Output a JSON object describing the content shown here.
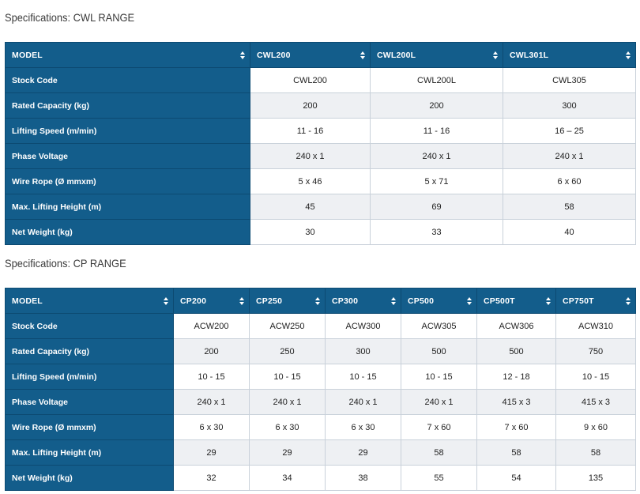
{
  "cwl": {
    "title": "Specifications: CWL RANGE",
    "headers": [
      "MODEL",
      "CWL200",
      "CWL200L",
      "CWL301L"
    ],
    "rows": [
      {
        "label": "Stock Code",
        "values": [
          "CWL200",
          "CWL200L",
          "CWL305"
        ]
      },
      {
        "label": "Rated Capacity (kg)",
        "values": [
          "200",
          "200",
          "300"
        ]
      },
      {
        "label": "Lifting Speed (m/min)",
        "values": [
          "11 - 16",
          "11 - 16",
          "16 – 25"
        ]
      },
      {
        "label": "Phase Voltage",
        "values": [
          "240 x 1",
          "240 x 1",
          "240 x 1"
        ]
      },
      {
        "label": "Wire Rope (Ø mmxm)",
        "values": [
          "5 x 46",
          "5 x 71",
          "6 x 60"
        ]
      },
      {
        "label": "Max. Lifting Height (m)",
        "values": [
          "45",
          "69",
          "58"
        ]
      },
      {
        "label": "Net Weight (kg)",
        "values": [
          "30",
          "33",
          "40"
        ]
      }
    ]
  },
  "cp": {
    "title": "Specifications: CP RANGE",
    "headers": [
      "MODEL",
      "CP200",
      "CP250",
      "CP300",
      "CP500",
      "CP500T",
      "CP750T"
    ],
    "rows": [
      {
        "label": "Stock Code",
        "values": [
          "ACW200",
          "ACW250",
          "ACW300",
          "ACW305",
          "ACW306",
          "ACW310"
        ]
      },
      {
        "label": "Rated Capacity (kg)",
        "values": [
          "200",
          "250",
          "300",
          "500",
          "500",
          "750"
        ]
      },
      {
        "label": "Lifting Speed (m/min)",
        "values": [
          "10 - 15",
          "10 - 15",
          "10 - 15",
          "10 - 15",
          "12 - 18",
          "10 - 15"
        ]
      },
      {
        "label": "Phase Voltage",
        "values": [
          "240 x 1",
          "240 x 1",
          "240 x 1",
          "240 x 1",
          "415 x 3",
          "415 x 3"
        ]
      },
      {
        "label": "Wire Rope (Ø mmxm)",
        "values": [
          "6 x 30",
          "6 x 30",
          "6 x 30",
          "7 x 60",
          "7 x 60",
          "9 x 60"
        ]
      },
      {
        "label": "Max. Lifting Height (m)",
        "values": [
          "29",
          "29",
          "29",
          "58",
          "58",
          "58"
        ]
      },
      {
        "label": "Net Weight (kg)",
        "values": [
          "32",
          "34",
          "38",
          "55",
          "54",
          "135"
        ]
      }
    ]
  },
  "colors": {
    "header_bg": "#135d8b",
    "row_alt_bg": "#eef0f3"
  }
}
